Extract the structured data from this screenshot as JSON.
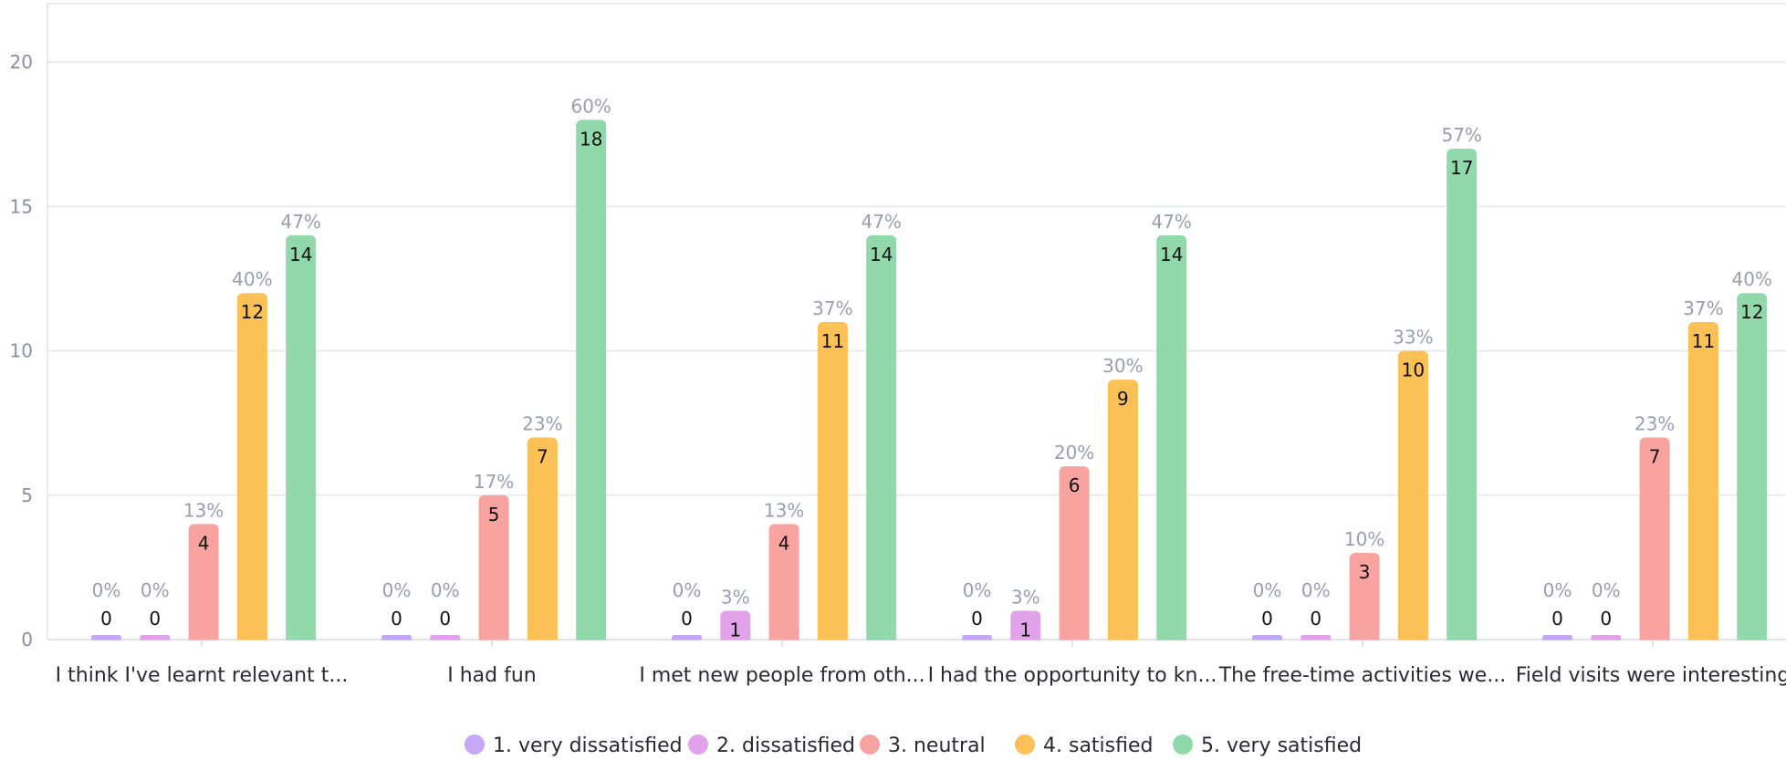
{
  "chart_data": {
    "type": "bar",
    "categories": [
      "I think I've learnt relevant t...",
      "I had fun",
      "I met new people from oth...",
      "I had the opportunity to kn...",
      "The free-time activities we...",
      "Field visits were interesting"
    ],
    "series": [
      {
        "name": "1. very dissatisfied",
        "color": "#c5a8f5",
        "values": [
          0,
          0,
          0,
          0,
          0,
          0
        ],
        "percent_labels": [
          "0%",
          "0%",
          "0%",
          "0%",
          "0%",
          "0%"
        ]
      },
      {
        "name": "2. dissatisfied",
        "color": "#e2a2ea",
        "values": [
          0,
          0,
          1,
          1,
          0,
          0
        ],
        "percent_labels": [
          "0%",
          "0%",
          "3%",
          "3%",
          "0%",
          "0%"
        ]
      },
      {
        "name": "3. neutral",
        "color": "#f8a3a0",
        "values": [
          4,
          5,
          4,
          6,
          3,
          7
        ],
        "percent_labels": [
          "13%",
          "17%",
          "13%",
          "20%",
          "10%",
          "23%"
        ]
      },
      {
        "name": "4. satisfied",
        "color": "#fcc156",
        "values": [
          12,
          7,
          11,
          9,
          10,
          11
        ],
        "percent_labels": [
          "40%",
          "23%",
          "37%",
          "30%",
          "33%",
          "37%"
        ]
      },
      {
        "name": "5. very satisfied",
        "color": "#91d9aa",
        "values": [
          14,
          18,
          14,
          14,
          17,
          12
        ],
        "percent_labels": [
          "47%",
          "60%",
          "47%",
          "47%",
          "57%",
          "40%"
        ]
      }
    ],
    "ylim": [
      0,
      20
    ],
    "yticks": [
      0,
      5,
      10,
      15,
      20
    ],
    "grid": true,
    "legend_position": "bottom-center",
    "xlabel": "",
    "ylabel": "",
    "title": ""
  }
}
